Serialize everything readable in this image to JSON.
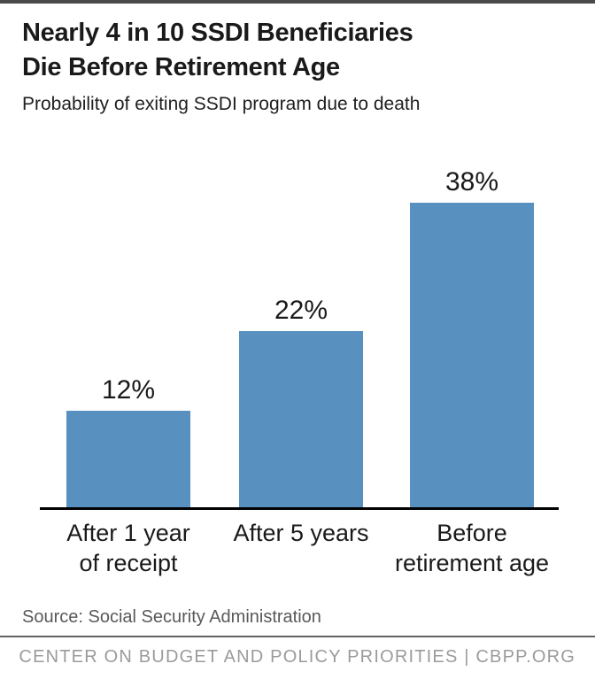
{
  "header": {
    "title_lines": [
      "Nearly 4 in 10 SSDI Beneficiaries",
      "Die Before Retirement Age"
    ],
    "subtitle": "Probability of exiting SSDI program due to death"
  },
  "chart_data": {
    "type": "bar",
    "categories": [
      "After 1 year of receipt",
      "After 5 years",
      "Before retirement age"
    ],
    "category_lines": [
      [
        "After 1 year",
        "of receipt"
      ],
      [
        "After 5 years",
        ""
      ],
      [
        "Before",
        "retirement age"
      ]
    ],
    "values": [
      12,
      22,
      38
    ],
    "value_labels": [
      "12%",
      "22%",
      "38%"
    ],
    "title": "Nearly 4 in 10 SSDI Beneficiaries Die Before Retirement Age",
    "subtitle": "Probability of exiting SSDI program due to death",
    "xlabel": "",
    "ylabel": "",
    "ylim": [
      0,
      45
    ],
    "grid": false,
    "legend": false,
    "bar_color": "#5890bf",
    "axis_color": "#000000"
  },
  "footer": {
    "source": "Source: Social Security Administration",
    "brand": "CENTER ON BUDGET AND POLICY PRIORITIES | CBPP.ORG"
  }
}
